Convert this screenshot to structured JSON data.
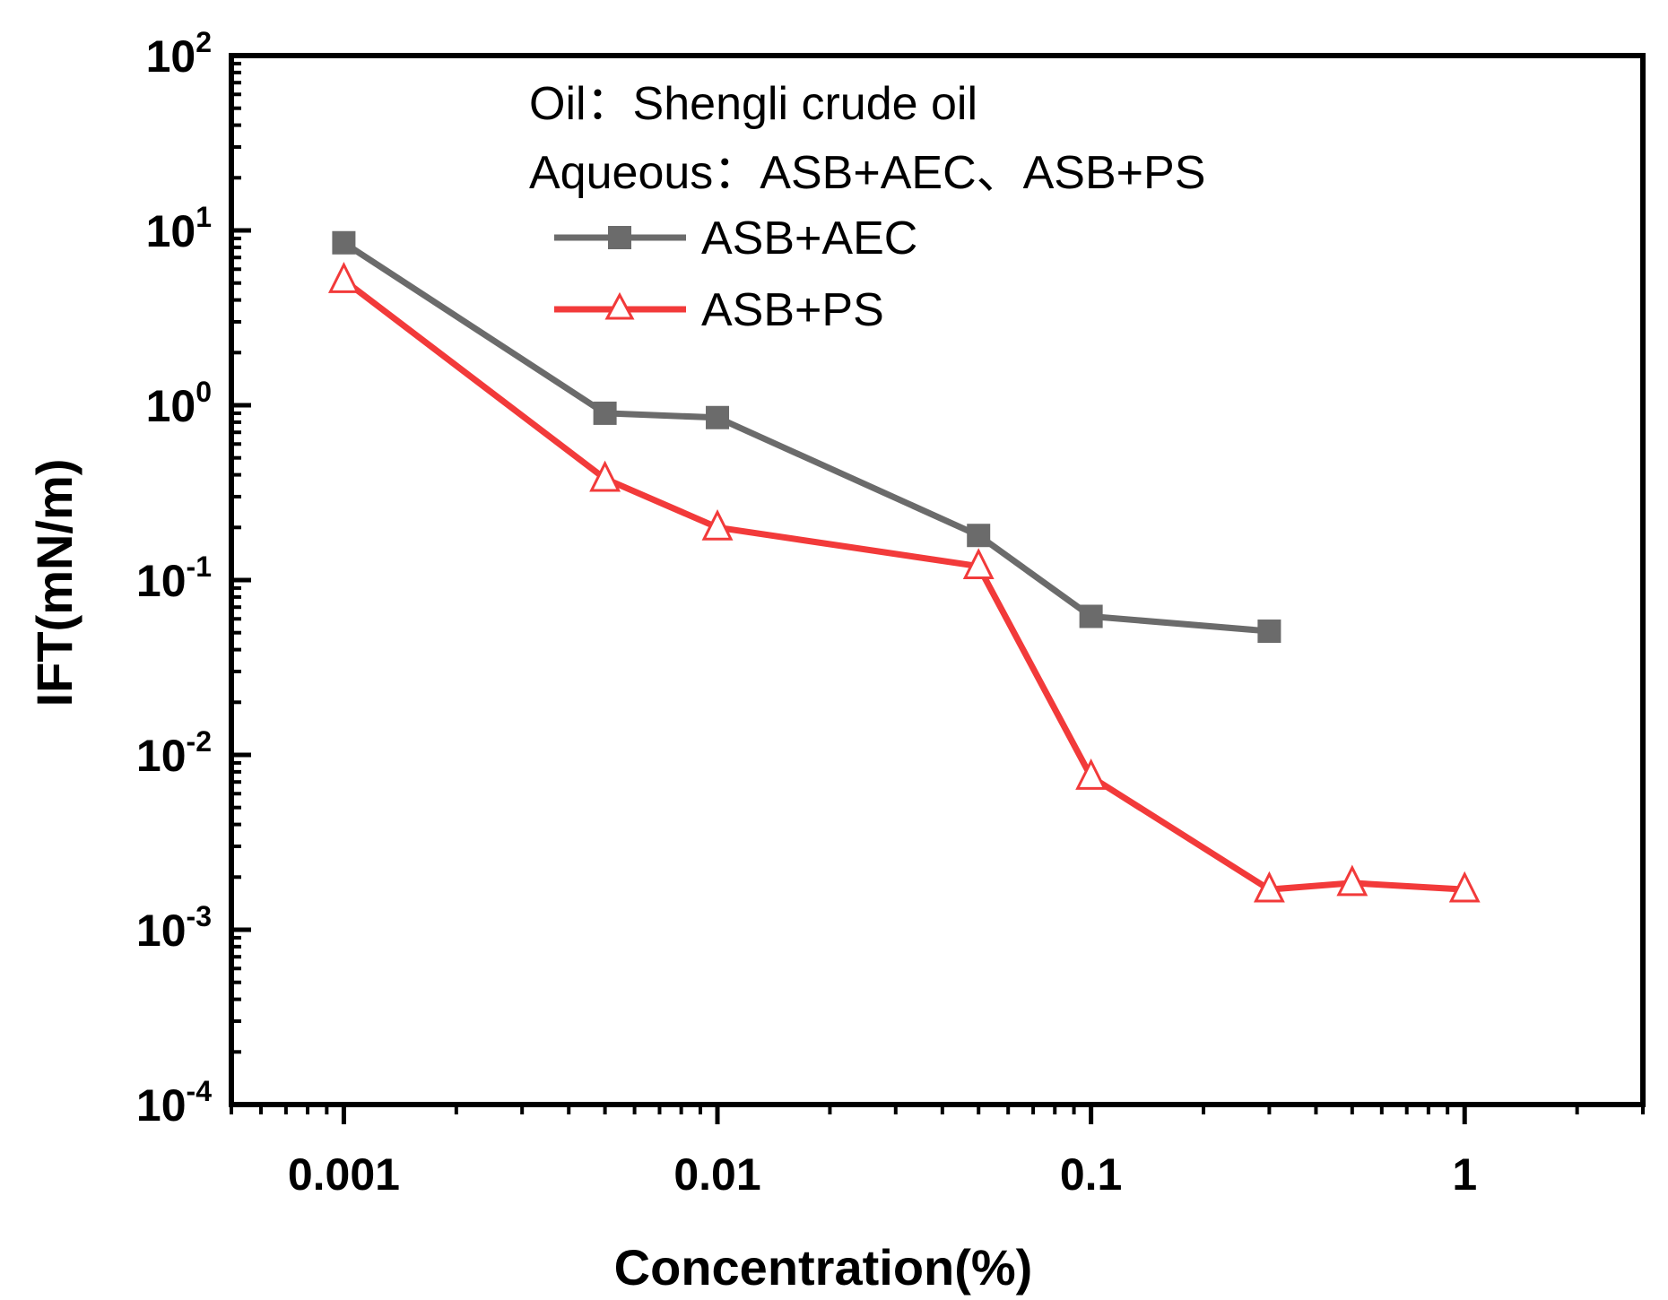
{
  "chart_data": {
    "type": "line",
    "xscale": "log",
    "yscale": "log",
    "xlabel": "Concentration(%)",
    "ylabel": "IFT(mN/m)",
    "xlim": [
      0.0005,
      3
    ],
    "ylim": [
      0.0001,
      100
    ],
    "x_ticks": [
      {
        "value": 0.001,
        "label": "0.001"
      },
      {
        "value": 0.01,
        "label": "0.01"
      },
      {
        "value": 0.1,
        "label": "0.1"
      },
      {
        "value": 1,
        "label": "1"
      }
    ],
    "y_ticks": [
      {
        "value": 0.0001,
        "base": "10",
        "exp": "-4"
      },
      {
        "value": 0.001,
        "base": "10",
        "exp": "-3"
      },
      {
        "value": 0.01,
        "base": "10",
        "exp": "-2"
      },
      {
        "value": 0.1,
        "base": "10",
        "exp": "-1"
      },
      {
        "value": 1,
        "base": "10",
        "exp": "0"
      },
      {
        "value": 10,
        "base": "10",
        "exp": "1"
      },
      {
        "value": 100,
        "base": "10",
        "exp": "2"
      }
    ],
    "annotations": [
      "Oil：Shengli crude oil",
      "Aqueous：ASB+AEC、ASB+PS"
    ],
    "legend_position": "top-center",
    "series": [
      {
        "name": "ASB+AEC",
        "color": "#6b6b6b",
        "marker": "filled-square",
        "x": [
          0.001,
          0.005,
          0.01,
          0.05,
          0.1,
          0.3
        ],
        "y": [
          8.5,
          0.9,
          0.85,
          0.18,
          0.062,
          0.051
        ]
      },
      {
        "name": "ASB+PS",
        "color": "#f23a3a",
        "marker": "open-triangle",
        "x": [
          0.001,
          0.005,
          0.01,
          0.05,
          0.1,
          0.3,
          0.5,
          1
        ],
        "y": [
          5.2,
          0.38,
          0.2,
          0.12,
          0.0075,
          0.0017,
          0.00185,
          0.0017
        ]
      }
    ]
  }
}
